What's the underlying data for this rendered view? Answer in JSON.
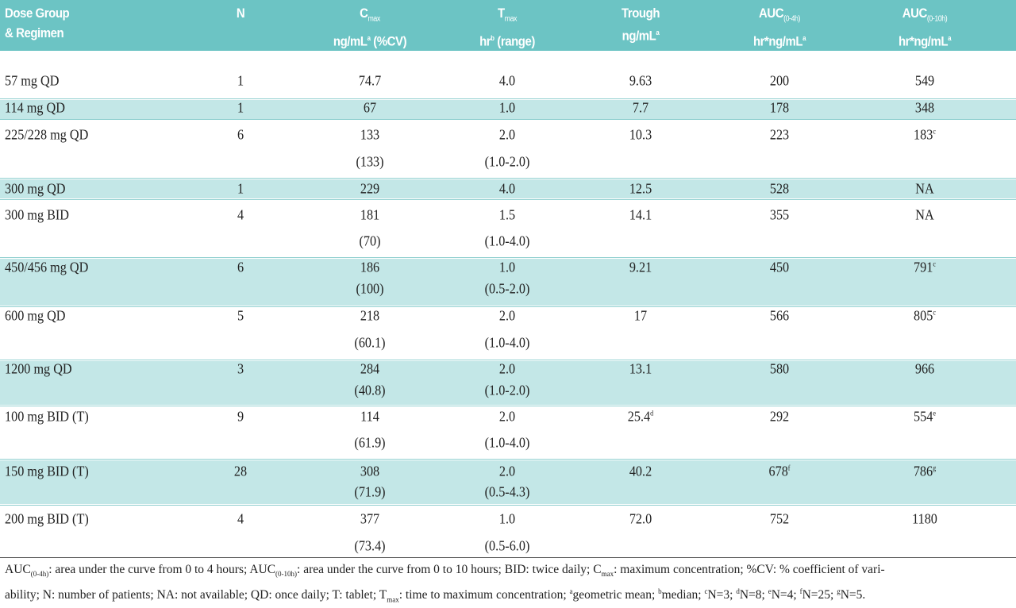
{
  "header": [
    {
      "lines": [
        [
          {
            "t": "Dose Group"
          }
        ],
        [
          {
            "t": "& Regimen"
          }
        ]
      ]
    },
    {
      "lines": [
        [
          {
            "t": "N"
          }
        ]
      ]
    },
    {
      "lines": [
        [
          {
            "t": "C"
          },
          {
            "t": "max",
            "f": "sub"
          }
        ],
        [
          {
            "t": "ng/mL"
          },
          {
            "t": "a",
            "f": "sup"
          },
          {
            "t": " (%CV)"
          }
        ]
      ]
    },
    {
      "lines": [
        [
          {
            "t": "T"
          },
          {
            "t": "max",
            "f": "sub"
          }
        ],
        [
          {
            "t": "hr"
          },
          {
            "t": "b",
            "f": "sup"
          },
          {
            "t": " (range)"
          }
        ]
      ]
    },
    {
      "lines": [
        [
          {
            "t": "Trough"
          }
        ],
        [
          {
            "t": "ng/mL"
          },
          {
            "t": "a",
            "f": "sup"
          }
        ]
      ]
    },
    {
      "lines": [
        [
          {
            "t": "AUC"
          },
          {
            "t": "(0-4h)",
            "f": "sub"
          }
        ],
        [
          {
            "t": "hr*ng/mL"
          },
          {
            "t": "a",
            "f": "sup"
          }
        ]
      ]
    },
    {
      "lines": [
        [
          {
            "t": "AUC"
          },
          {
            "t": "(0-10h)",
            "f": "sub"
          }
        ],
        [
          {
            "t": "hr*ng/mL"
          },
          {
            "t": "a",
            "f": "sup"
          }
        ]
      ]
    }
  ],
  "rows": [
    {
      "dose": "57 mg QD",
      "n": "1",
      "cmax": {
        "value": "74.7"
      },
      "tmax": {
        "value": "4.0"
      },
      "trough": {
        "value": "9.63"
      },
      "auc4": {
        "value": "200"
      },
      "auc10": {
        "value": "549"
      }
    },
    {
      "dose": "114 mg QD",
      "n": "1",
      "cmax": {
        "value": "67"
      },
      "tmax": {
        "value": "1.0"
      },
      "trough": {
        "value": "7.7"
      },
      "auc4": {
        "value": "178"
      },
      "auc10": {
        "value": "348"
      }
    },
    {
      "dose": "225/228 mg QD",
      "n": "6",
      "cmax": {
        "value": "133",
        "second": "(133)"
      },
      "tmax": {
        "value": "2.0",
        "second": "(1.0-2.0)"
      },
      "trough": {
        "value": "10.3"
      },
      "auc4": {
        "value": "223"
      },
      "auc10": {
        "value": "183",
        "note": "c"
      }
    },
    {
      "dose": "300 mg QD",
      "n": "1",
      "cmax": {
        "value": "229"
      },
      "tmax": {
        "value": "4.0"
      },
      "trough": {
        "value": "12.5"
      },
      "auc4": {
        "value": "528"
      },
      "auc10": {
        "value": "NA"
      }
    },
    {
      "dose": "300 mg BID",
      "n": "4",
      "cmax": {
        "value": "181",
        "second": "(70)"
      },
      "tmax": {
        "value": "1.5",
        "second": "(1.0-4.0)"
      },
      "trough": {
        "value": "14.1"
      },
      "auc4": {
        "value": "355"
      },
      "auc10": {
        "value": "NA"
      }
    },
    {
      "dose": "450/456 mg QD",
      "n": "6",
      "cmax": {
        "value": "186",
        "second": "(100)"
      },
      "tmax": {
        "value": "1.0",
        "second": "(0.5-2.0)"
      },
      "trough": {
        "value": "9.21"
      },
      "auc4": {
        "value": "450"
      },
      "auc10": {
        "value": "791",
        "note": "c"
      }
    },
    {
      "dose": "600 mg QD",
      "n": "5",
      "cmax": {
        "value": "218",
        "second": "(60.1)"
      },
      "tmax": {
        "value": "2.0",
        "second": "(1.0-4.0)"
      },
      "trough": {
        "value": "17"
      },
      "auc4": {
        "value": "566"
      },
      "auc10": {
        "value": "805",
        "note": "c"
      }
    },
    {
      "dose": "1200 mg QD",
      "n": "3",
      "cmax": {
        "value": "284",
        "second": "(40.8)"
      },
      "tmax": {
        "value": "2.0",
        "second": "(1.0-2.0)"
      },
      "trough": {
        "value": "13.1"
      },
      "auc4": {
        "value": "580"
      },
      "auc10": {
        "value": "966"
      }
    },
    {
      "dose": "100 mg BID (T)",
      "n": "9",
      "cmax": {
        "value": "114",
        "second": "(61.9)"
      },
      "tmax": {
        "value": "2.0",
        "second": "(1.0-4.0)"
      },
      "trough": {
        "value": "25.4",
        "note": "d"
      },
      "auc4": {
        "value": "292"
      },
      "auc10": {
        "value": "554",
        "note": "e"
      }
    },
    {
      "dose": "150 mg BID (T)",
      "n": "28",
      "cmax": {
        "value": "308",
        "second": "(71.9)"
      },
      "tmax": {
        "value": "2.0",
        "second": "(0.5-4.3)"
      },
      "trough": {
        "value": "40.2"
      },
      "auc4": {
        "value": "678",
        "note": "f"
      },
      "auc10": {
        "value": "786",
        "note": "g"
      }
    },
    {
      "dose": "200 mg BID (T)",
      "n": "4",
      "cmax": {
        "value": "377",
        "second": "(73.4)"
      },
      "tmax": {
        "value": "1.0",
        "second": "(0.5-6.0)"
      },
      "trough": {
        "value": "72.0"
      },
      "auc4": {
        "value": "752"
      },
      "auc10": {
        "value": "1180"
      }
    }
  ],
  "footnote": [
    [
      {
        "t": "AUC"
      },
      {
        "t": "(0-4h)",
        "f": "sub"
      },
      {
        "t": ": area under the curve from 0 to 4 hours; AUC"
      },
      {
        "t": "(0-10h)",
        "f": "sub"
      },
      {
        "t": ": area under the curve from 0 to 10 hours; BID: twice daily; C"
      },
      {
        "t": "max",
        "f": "sub"
      },
      {
        "t": ": maximum concentration; %CV: % coefficient of vari-"
      }
    ],
    [
      {
        "t": "ability; N: number of patients; NA: not available; QD: once daily; T: tablet; T"
      },
      {
        "t": "max",
        "f": "sub"
      },
      {
        "t": ": time to maximum concentration; "
      },
      {
        "t": "a",
        "f": "sup"
      },
      {
        "t": "geometric mean; "
      },
      {
        "t": "b",
        "f": "sup"
      },
      {
        "t": "median; "
      },
      {
        "t": "c",
        "f": "sup"
      },
      {
        "t": "N=3; "
      },
      {
        "t": "d",
        "f": "sup"
      },
      {
        "t": "N=8; "
      },
      {
        "t": "e",
        "f": "sup"
      },
      {
        "t": "N=4; "
      },
      {
        "t": "f",
        "f": "sup"
      },
      {
        "t": "N=25; "
      },
      {
        "t": "g",
        "f": "sup"
      },
      {
        "t": "N=5."
      }
    ]
  ]
}
